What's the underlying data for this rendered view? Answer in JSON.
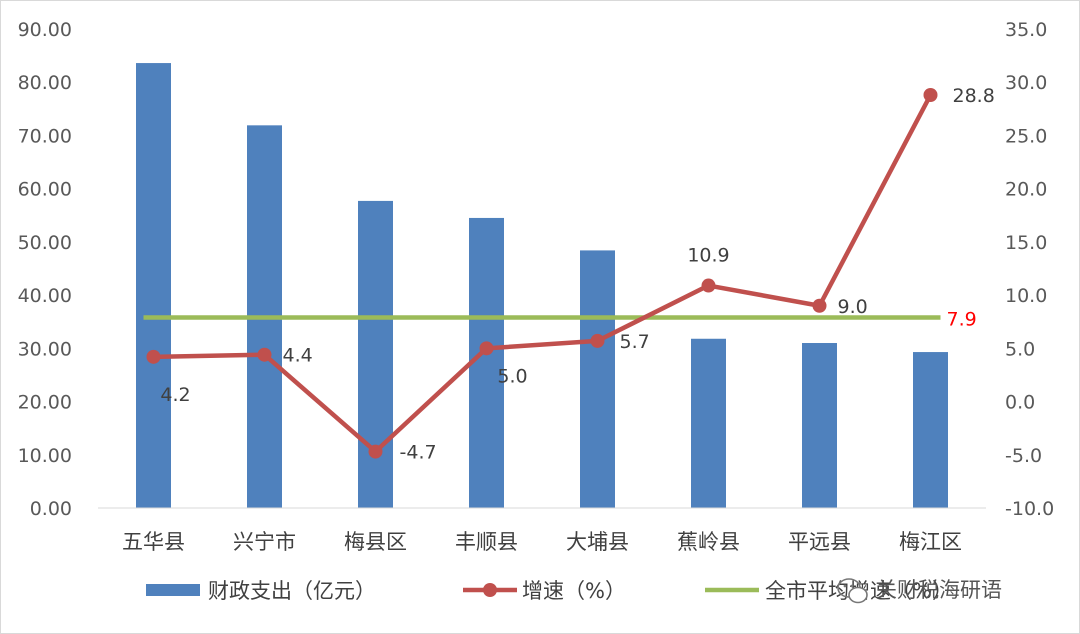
{
  "chart_data": {
    "type": "bar",
    "categories": [
      "五华县",
      "兴宁市",
      "梅县区",
      "丰顺县",
      "大埔县",
      "蕉岭县",
      "平远县",
      "梅江区"
    ],
    "series": [
      {
        "name": "财政支出（亿元）",
        "type": "bar",
        "axis": "left",
        "values": [
          83.6,
          71.9,
          57.7,
          54.5,
          48.4,
          31.8,
          31.0,
          29.3
        ],
        "color": "#4f81bd"
      },
      {
        "name": "增速（%）",
        "type": "line",
        "axis": "right",
        "values": [
          4.2,
          4.4,
          -4.7,
          5.0,
          5.7,
          10.9,
          9.0,
          28.8
        ],
        "labels": [
          "4.2",
          "4.4",
          "-4.7",
          "5.0",
          "5.7",
          "10.9",
          "9.0",
          "28.8"
        ],
        "color": "#c0504d"
      },
      {
        "name": "全市平均增速（%）",
        "type": "line",
        "axis": "right",
        "value": 7.9,
        "label": "7.9",
        "color": "#9bbb59",
        "label_color": "#ff0000"
      }
    ],
    "y_left": {
      "ylim": [
        0,
        90
      ],
      "ticks": [
        "0.00",
        "10.00",
        "20.00",
        "30.00",
        "40.00",
        "50.00",
        "60.00",
        "70.00",
        "80.00",
        "90.00"
      ]
    },
    "y_right": {
      "ylim": [
        -10,
        35
      ],
      "ticks": [
        "-10.0",
        "-5.0",
        "0.0",
        "5.0",
        "10.0",
        "15.0",
        "20.0",
        "25.0",
        "30.0",
        "35.0"
      ]
    },
    "grid": false,
    "legend": "bottom"
  },
  "watermark": {
    "text": "关财税海研语",
    "icon": "wechat-icon"
  }
}
